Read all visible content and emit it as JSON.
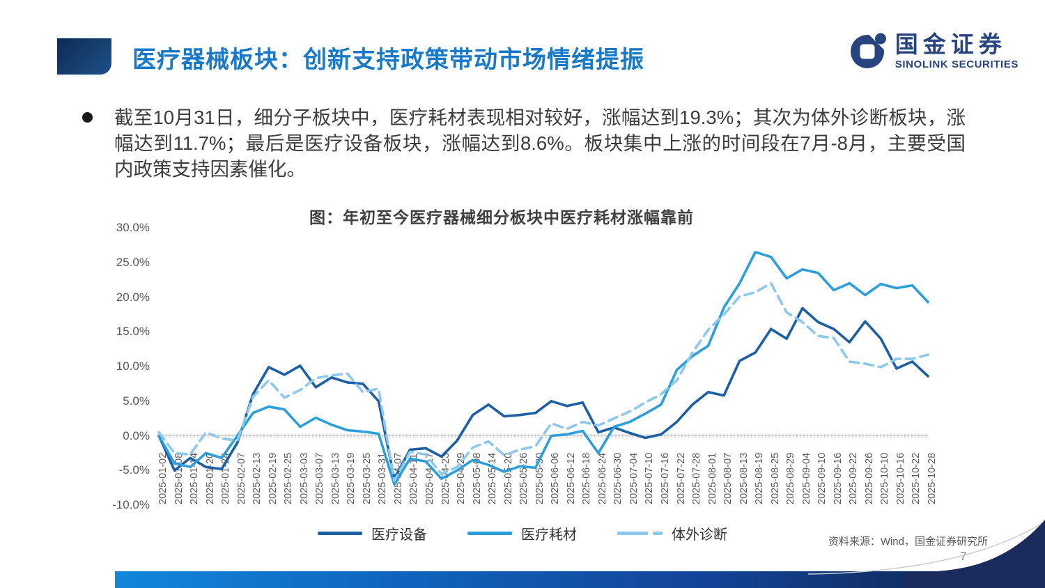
{
  "header": {
    "title": "医疗器械板块：创新支持政策带动市场情绪提振"
  },
  "logo": {
    "cn": "国金证券",
    "en": "SINOLINK SECURITIES"
  },
  "bullet": {
    "text": "截至10月31日，细分子板块中，医疗耗材表现相对较好，涨幅达到19.3%；其次为体外诊断板块，涨幅达到11.7%；最后是医疗设备板块，涨幅达到8.6%。板块集中上涨的时间段在7月-8月，主要受国内政策支持因素催化。"
  },
  "chart_data": {
    "type": "line",
    "title": "图：年初至今医疗器械细分板块中医疗耗材涨幅靠前",
    "xlabel": "",
    "ylabel": "",
    "ylim": [
      -10,
      30
    ],
    "grid": false,
    "legend_position": "bottom",
    "y_ticks": [
      "30.0%",
      "25.0%",
      "20.0%",
      "15.0%",
      "10.0%",
      "5.0%",
      "0.0%",
      "-5.0%",
      "-10.0%"
    ],
    "x_labels": [
      "2025-01-02",
      "2025-01-08",
      "2025-01-14",
      "2025-01-20",
      "2025-01-24",
      "2025-02-07",
      "2025-02-13",
      "2025-02-19",
      "2025-02-25",
      "2025-03-03",
      "2025-03-07",
      "2025-03-13",
      "2025-03-19",
      "2025-03-25",
      "2025-03-31",
      "2025-04-07",
      "2025-04-11",
      "2025-04-17",
      "2025-04-23",
      "2025-04-29",
      "2025-05-08",
      "2025-05-14",
      "2025-05-20",
      "2025-05-26",
      "2025-05-30",
      "2025-06-06",
      "2025-06-12",
      "2025-06-18",
      "2025-06-24",
      "2025-06-30",
      "2025-07-04",
      "2025-07-10",
      "2025-07-16",
      "2025-07-22",
      "2025-07-28",
      "2025-08-01",
      "2025-08-07",
      "2025-08-13",
      "2025-08-19",
      "2025-08-25",
      "2025-08-29",
      "2025-09-04",
      "2025-09-10",
      "2025-09-16",
      "2025-09-22",
      "2025-09-26",
      "2025-10-10",
      "2025-10-16",
      "2025-10-22",
      "2025-10-28"
    ],
    "series": [
      {
        "id": "medical-equipment",
        "name": "医疗设备",
        "color": "#1c5fa5",
        "dash": false,
        "values": [
          0.0,
          -5.0,
          -3.2,
          -4.5,
          -4.8,
          -1.0,
          6.0,
          9.9,
          8.8,
          10.1,
          7.0,
          8.4,
          7.7,
          7.5,
          5.0,
          -6.2,
          -2.0,
          -1.8,
          -3.0,
          -0.7,
          3.0,
          4.5,
          2.8,
          3.0,
          3.3,
          5.0,
          4.3,
          4.8,
          0.5,
          1.2,
          0.4,
          -0.3,
          0.2,
          2.0,
          4.5,
          6.3,
          5.8,
          10.8,
          12.0,
          15.4,
          14.0,
          18.4,
          16.4,
          15.4,
          13.5,
          16.5,
          14.0,
          9.7,
          10.7,
          8.6
        ]
      },
      {
        "id": "medical-consumables",
        "name": "医疗耗材",
        "color": "#2b9fdb",
        "dash": false,
        "values": [
          0.0,
          -4.0,
          -4.5,
          -2.5,
          -3.2,
          0.0,
          3.3,
          4.2,
          3.8,
          1.3,
          2.6,
          1.6,
          0.8,
          0.6,
          0.3,
          -7.0,
          -3.3,
          -3.7,
          -6.2,
          -5.0,
          -3.5,
          -4.2,
          -5.2,
          -4.4,
          -4.6,
          0.0,
          0.2,
          0.7,
          -2.5,
          1.3,
          2.0,
          3.2,
          4.5,
          9.5,
          11.5,
          13.0,
          18.5,
          22.0,
          26.5,
          25.8,
          22.7,
          24.0,
          23.5,
          21.0,
          22.0,
          20.3,
          21.9,
          21.3,
          21.7,
          19.3
        ]
      },
      {
        "id": "ivd-diagnostics",
        "name": "体外诊断",
        "color": "#8dc9ee",
        "dash": true,
        "values": [
          0.5,
          -2.5,
          -2.7,
          0.5,
          -0.4,
          -0.7,
          5.6,
          8.0,
          5.5,
          6.6,
          8.3,
          8.7,
          9.0,
          6.3,
          6.8,
          -6.5,
          -2.3,
          -2.7,
          -5.5,
          -4.5,
          -1.7,
          -0.8,
          -2.8,
          -2.0,
          -1.5,
          1.8,
          1.0,
          2.0,
          1.5,
          2.5,
          3.5,
          4.8,
          6.0,
          8.0,
          12.0,
          15.3,
          17.5,
          20.1,
          20.7,
          22.0,
          17.8,
          16.4,
          14.4,
          14.1,
          10.7,
          10.4,
          9.9,
          11.1,
          11.1,
          11.7
        ]
      }
    ],
    "end_values_note": {
      "医疗耗材": "19.3%",
      "体外诊断": "11.7%",
      "医疗设备": "8.6%"
    }
  },
  "footer": {
    "source": "资料来源：Wind，国金证券研究所",
    "page": "7"
  },
  "colors": {
    "title_blue": "#1879c9",
    "brand_navy": "#27447e",
    "footer_navy": "#0d2145",
    "footer_bright": "#1287da",
    "axis_text": "#595959",
    "zero_axis": "#d8d8d8"
  }
}
